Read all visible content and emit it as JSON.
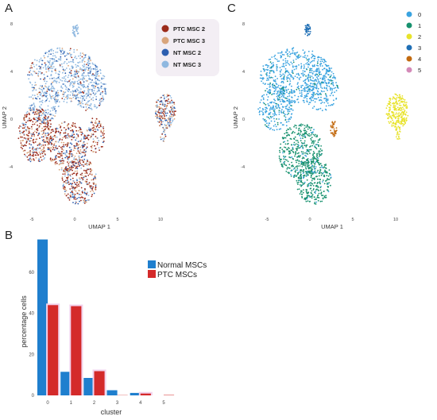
{
  "panels": {
    "a_label": "A",
    "b_label": "B",
    "c_label": "C"
  },
  "colors": {
    "ptc_msc2": "#9b2a1a",
    "ptc_msc3": "#d9a57c",
    "nt_msc2": "#2d5fb0",
    "nt_msc3": "#8fb8e0",
    "c0": "#3aa3e0",
    "c1": "#17916e",
    "c2": "#e8e32a",
    "c3": "#1f6fb5",
    "c4": "#c26a10",
    "c5": "#d48ab8",
    "normal_bar": "#1f7fce",
    "ptc_bar": "#d42a2a"
  },
  "chart_data": [
    {
      "type": "scatter",
      "panel": "A",
      "xlabel": "UMAP 1",
      "ylabel": "UMAP 2",
      "x_ticks": [
        "-5",
        "0",
        "5",
        "10"
      ],
      "y_ticks": [
        "8",
        "4",
        "0",
        "-4"
      ],
      "xlim": [
        -7.5,
        13.5
      ],
      "ylim": [
        -7.5,
        8.5
      ],
      "legend_position": "top-right",
      "series": [
        {
          "name": "PTC MSC 2",
          "color_key": "ptc_msc2"
        },
        {
          "name": "PTC MSC 3",
          "color_key": "ptc_msc3"
        },
        {
          "name": "NT MSC 2",
          "color_key": "nt_msc2"
        },
        {
          "name": "NT MSC 3",
          "color_key": "nt_msc3"
        }
      ]
    },
    {
      "type": "scatter",
      "panel": "C",
      "xlabel": "UMAP 1",
      "ylabel": "UMAP 2",
      "x_ticks": [
        "-5",
        "0",
        "5",
        "10"
      ],
      "y_ticks": [
        "8",
        "4",
        "0",
        "-4"
      ],
      "xlim": [
        -7.5,
        13.5
      ],
      "ylim": [
        -7.5,
        8.5
      ],
      "legend_position": "top-right",
      "series": [
        {
          "name": "0",
          "color_key": "c0"
        },
        {
          "name": "1",
          "color_key": "c1"
        },
        {
          "name": "2",
          "color_key": "c2"
        },
        {
          "name": "3",
          "color_key": "c3"
        },
        {
          "name": "4",
          "color_key": "c4"
        },
        {
          "name": "5",
          "color_key": "c5"
        }
      ]
    },
    {
      "type": "bar",
      "panel": "B",
      "xlabel": "cluster",
      "ylabel": "percentage  cells",
      "categories": [
        "0",
        "1",
        "2",
        "3",
        "4",
        "5"
      ],
      "y_ticks": [
        "0",
        "20",
        "40",
        "60"
      ],
      "ylim": [
        0,
        77
      ],
      "legend_position": "top-right",
      "series": [
        {
          "name": "Normal MSCs",
          "color_key": "normal_bar",
          "values": [
            76,
            11.5,
            8.5,
            2.5,
            1.2,
            0
          ]
        },
        {
          "name": "PTC MSCs",
          "color_key": "ptc_bar",
          "values": [
            44,
            43.5,
            11.8,
            0.1,
            0.9,
            0.2
          ]
        }
      ]
    }
  ]
}
